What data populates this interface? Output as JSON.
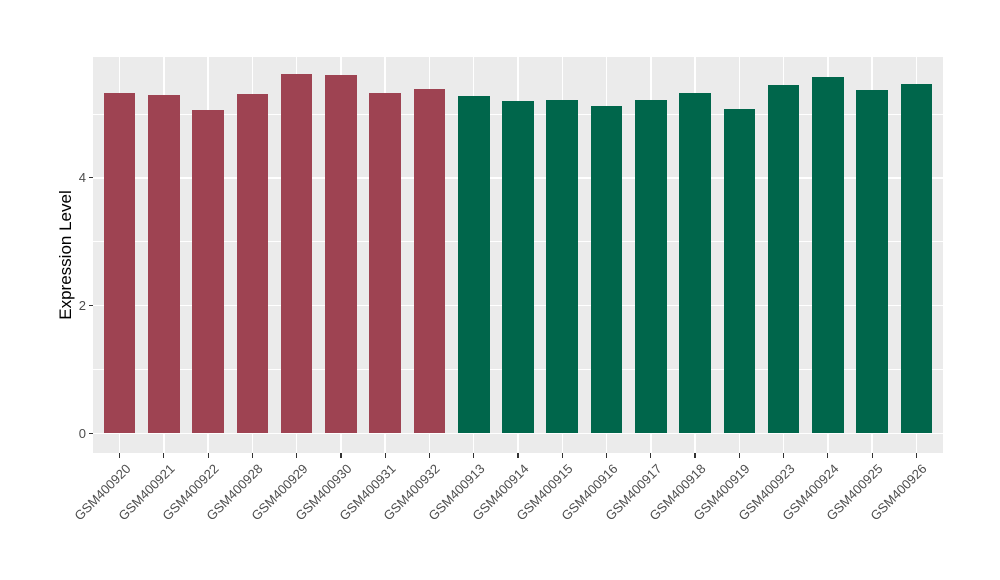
{
  "figure": {
    "background": "#FFFFFF",
    "panel_background": "#EBEBEB",
    "grid_color": "#FFFFFF",
    "tick_mark_color": "#333333",
    "axis_text_color": "#4D4D4D",
    "axis_title_color": "#000000"
  },
  "chart_data": {
    "type": "bar",
    "title": "",
    "xlabel": "",
    "ylabel": "Expression Level",
    "ylim": [
      0,
      5.9
    ],
    "grid": true,
    "legend_position": "none",
    "y_ticks": [
      {
        "value": 0,
        "label": "0"
      },
      {
        "value": 2,
        "label": "2"
      },
      {
        "value": 4,
        "label": "4"
      }
    ],
    "y_minor_gridlines": [
      1,
      3,
      5
    ],
    "group_colors": {
      "maroon": "#9E4352",
      "green": "#00664B"
    },
    "categories": [
      "GSM400920",
      "GSM400921",
      "GSM400922",
      "GSM400928",
      "GSM400929",
      "GSM400930",
      "GSM400931",
      "GSM400932",
      "GSM400913",
      "GSM400914",
      "GSM400915",
      "GSM400916",
      "GSM400917",
      "GSM400918",
      "GSM400919",
      "GSM400923",
      "GSM400924",
      "GSM400925",
      "GSM400926"
    ],
    "values": [
      5.33,
      5.29,
      5.07,
      5.32,
      5.62,
      5.61,
      5.33,
      5.39,
      5.28,
      5.21,
      5.22,
      5.13,
      5.22,
      5.33,
      5.08,
      5.45,
      5.58,
      5.38,
      5.47
    ],
    "bars": [
      {
        "label": "GSM400920",
        "value": 5.33,
        "group": "maroon"
      },
      {
        "label": "GSM400921",
        "value": 5.29,
        "group": "maroon"
      },
      {
        "label": "GSM400922",
        "value": 5.07,
        "group": "maroon"
      },
      {
        "label": "GSM400928",
        "value": 5.32,
        "group": "maroon"
      },
      {
        "label": "GSM400929",
        "value": 5.62,
        "group": "maroon"
      },
      {
        "label": "GSM400930",
        "value": 5.61,
        "group": "maroon"
      },
      {
        "label": "GSM400931",
        "value": 5.33,
        "group": "maroon"
      },
      {
        "label": "GSM400932",
        "value": 5.39,
        "group": "maroon"
      },
      {
        "label": "GSM400913",
        "value": 5.28,
        "group": "green"
      },
      {
        "label": "GSM400914",
        "value": 5.21,
        "group": "green"
      },
      {
        "label": "GSM400915",
        "value": 5.22,
        "group": "green"
      },
      {
        "label": "GSM400916",
        "value": 5.13,
        "group": "green"
      },
      {
        "label": "GSM400917",
        "value": 5.22,
        "group": "green"
      },
      {
        "label": "GSM400918",
        "value": 5.33,
        "group": "green"
      },
      {
        "label": "GSM400919",
        "value": 5.08,
        "group": "green"
      },
      {
        "label": "GSM400923",
        "value": 5.45,
        "group": "green"
      },
      {
        "label": "GSM400924",
        "value": 5.58,
        "group": "green"
      },
      {
        "label": "GSM400925",
        "value": 5.38,
        "group": "green"
      },
      {
        "label": "GSM400926",
        "value": 5.47,
        "group": "green"
      }
    ]
  }
}
